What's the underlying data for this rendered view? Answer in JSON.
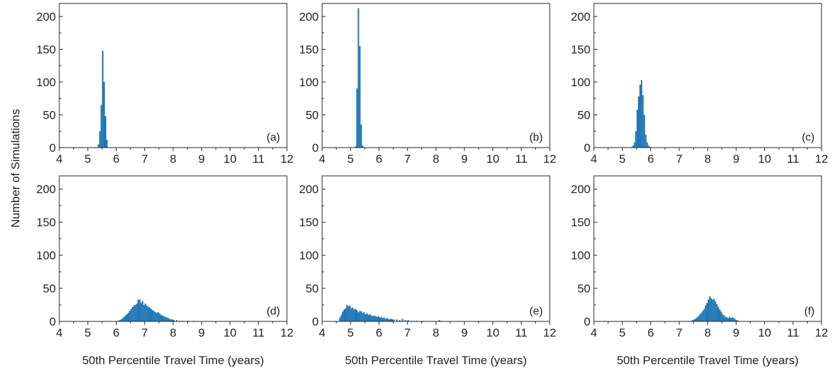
{
  "figure": {
    "shared_ylabel": "Number of Simulations",
    "xlabel": "50th Percentile Travel Time (years)",
    "bar_color": "#1f77b4"
  },
  "chart_data": [
    {
      "type": "bar",
      "panel_label": "(a)",
      "xlim": [
        4,
        12
      ],
      "ylim": [
        0,
        220
      ],
      "xticks": [
        4,
        5,
        6,
        7,
        8,
        9,
        10,
        11,
        12
      ],
      "yticks": [
        0,
        50,
        100,
        150,
        200
      ],
      "xlabel": "",
      "ylabel": "",
      "bin_width": 0.05,
      "bins": [
        [
          5.35,
          5
        ],
        [
          5.4,
          25
        ],
        [
          5.45,
          65
        ],
        [
          5.5,
          148
        ],
        [
          5.55,
          100
        ],
        [
          5.6,
          48
        ],
        [
          5.65,
          12
        ]
      ]
    },
    {
      "type": "bar",
      "panel_label": "(b)",
      "xlim": [
        4,
        12
      ],
      "ylim": [
        0,
        220
      ],
      "xticks": [
        4,
        5,
        6,
        7,
        8,
        9,
        10,
        11,
        12
      ],
      "yticks": [
        0,
        50,
        100,
        150,
        200
      ],
      "xlabel": "",
      "ylabel": "",
      "bin_width": 0.05,
      "bins": [
        [
          5.15,
          2
        ],
        [
          5.2,
          90
        ],
        [
          5.25,
          213
        ],
        [
          5.3,
          155
        ],
        [
          5.35,
          35
        ],
        [
          5.4,
          3
        ]
      ]
    },
    {
      "type": "bar",
      "panel_label": "(c)",
      "xlim": [
        4,
        12
      ],
      "ylim": [
        0,
        220
      ],
      "xticks": [
        4,
        5,
        6,
        7,
        8,
        9,
        10,
        11,
        12
      ],
      "yticks": [
        0,
        50,
        100,
        150,
        200
      ],
      "xlabel": "",
      "ylabel": "",
      "bin_width": 0.05,
      "bins": [
        [
          5.3,
          1
        ],
        [
          5.35,
          3
        ],
        [
          5.4,
          8
        ],
        [
          5.45,
          25
        ],
        [
          5.5,
          58
        ],
        [
          5.55,
          78
        ],
        [
          5.6,
          96
        ],
        [
          5.65,
          103
        ],
        [
          5.7,
          80
        ],
        [
          5.75,
          50
        ],
        [
          5.8,
          20
        ],
        [
          5.85,
          8
        ],
        [
          5.9,
          3
        ],
        [
          5.95,
          1
        ]
      ]
    },
    {
      "type": "bar",
      "panel_label": "(d)",
      "xlim": [
        4,
        12
      ],
      "ylim": [
        0,
        220
      ],
      "xticks": [
        4,
        5,
        6,
        7,
        8,
        9,
        10,
        11,
        12
      ],
      "yticks": [
        0,
        50,
        100,
        150,
        200
      ],
      "xlabel": "50th Percentile Travel Time (years)",
      "ylabel": "",
      "bin_width": 0.05,
      "bins": [
        [
          6.05,
          1
        ],
        [
          6.1,
          2
        ],
        [
          6.15,
          3
        ],
        [
          6.2,
          5
        ],
        [
          6.25,
          7
        ],
        [
          6.3,
          9
        ],
        [
          6.35,
          11
        ],
        [
          6.4,
          13
        ],
        [
          6.45,
          16
        ],
        [
          6.5,
          19
        ],
        [
          6.55,
          22
        ],
        [
          6.6,
          24
        ],
        [
          6.65,
          25
        ],
        [
          6.7,
          27
        ],
        [
          6.75,
          33
        ],
        [
          6.8,
          33
        ],
        [
          6.85,
          28
        ],
        [
          6.9,
          31
        ],
        [
          6.95,
          25
        ],
        [
          7.0,
          27
        ],
        [
          7.05,
          24
        ],
        [
          7.1,
          22
        ],
        [
          7.15,
          21
        ],
        [
          7.2,
          19
        ],
        [
          7.25,
          17
        ],
        [
          7.3,
          16
        ],
        [
          7.35,
          14
        ],
        [
          7.4,
          13
        ],
        [
          7.45,
          14
        ],
        [
          7.5,
          12
        ],
        [
          7.55,
          10
        ],
        [
          7.6,
          9
        ],
        [
          7.65,
          8
        ],
        [
          7.7,
          7
        ],
        [
          7.75,
          6
        ],
        [
          7.8,
          5
        ],
        [
          7.85,
          4
        ],
        [
          7.9,
          3
        ],
        [
          7.95,
          3
        ],
        [
          8.0,
          2
        ],
        [
          8.1,
          2
        ],
        [
          8.2,
          1
        ],
        [
          8.3,
          1
        ],
        [
          8.5,
          1
        ],
        [
          8.7,
          1
        ]
      ]
    },
    {
      "type": "bar",
      "panel_label": "(e)",
      "xlim": [
        4,
        12
      ],
      "ylim": [
        0,
        220
      ],
      "xticks": [
        4,
        5,
        6,
        7,
        8,
        9,
        10,
        11,
        12
      ],
      "yticks": [
        0,
        50,
        100,
        150,
        200
      ],
      "xlabel": "50th Percentile Travel Time (years)",
      "ylabel": "",
      "bin_width": 0.05,
      "bins": [
        [
          4.6,
          6
        ],
        [
          4.65,
          10
        ],
        [
          4.7,
          15
        ],
        [
          4.75,
          18
        ],
        [
          4.8,
          20
        ],
        [
          4.85,
          25
        ],
        [
          4.9,
          23
        ],
        [
          4.95,
          24
        ],
        [
          5.0,
          20
        ],
        [
          5.05,
          21
        ],
        [
          5.1,
          18
        ],
        [
          5.15,
          19
        ],
        [
          5.2,
          17
        ],
        [
          5.25,
          14
        ],
        [
          5.3,
          16
        ],
        [
          5.35,
          15
        ],
        [
          5.4,
          13
        ],
        [
          5.45,
          14
        ],
        [
          5.5,
          11
        ],
        [
          5.55,
          12
        ],
        [
          5.6,
          10
        ],
        [
          5.65,
          11
        ],
        [
          5.7,
          9
        ],
        [
          5.75,
          8
        ],
        [
          5.8,
          9
        ],
        [
          5.85,
          8
        ],
        [
          5.9,
          7
        ],
        [
          5.95,
          8
        ],
        [
          6.0,
          6
        ],
        [
          6.05,
          7
        ],
        [
          6.1,
          5
        ],
        [
          6.15,
          6
        ],
        [
          6.2,
          4
        ],
        [
          6.25,
          5
        ],
        [
          6.3,
          4
        ],
        [
          6.35,
          3
        ],
        [
          6.4,
          4
        ],
        [
          6.45,
          3
        ],
        [
          6.5,
          3
        ],
        [
          6.6,
          3
        ],
        [
          6.7,
          2
        ],
        [
          6.8,
          4
        ],
        [
          6.9,
          2
        ],
        [
          7.0,
          2
        ],
        [
          7.1,
          1
        ],
        [
          7.2,
          1
        ],
        [
          7.3,
          1
        ],
        [
          7.5,
          1
        ],
        [
          8.1,
          2
        ]
      ]
    },
    {
      "type": "bar",
      "panel_label": "(f)",
      "xlim": [
        4,
        12
      ],
      "ylim": [
        0,
        220
      ],
      "xticks": [
        4,
        5,
        6,
        7,
        8,
        9,
        10,
        11,
        12
      ],
      "yticks": [
        0,
        50,
        100,
        150,
        200
      ],
      "xlabel": "50th Percentile Travel Time (years)",
      "ylabel": "",
      "bin_width": 0.05,
      "bins": [
        [
          7.4,
          1
        ],
        [
          7.45,
          2
        ],
        [
          7.5,
          3
        ],
        [
          7.55,
          4
        ],
        [
          7.6,
          6
        ],
        [
          7.65,
          8
        ],
        [
          7.7,
          11
        ],
        [
          7.75,
          13
        ],
        [
          7.8,
          16
        ],
        [
          7.85,
          19
        ],
        [
          7.9,
          24
        ],
        [
          7.95,
          28
        ],
        [
          8.0,
          33
        ],
        [
          8.05,
          38
        ],
        [
          8.1,
          35
        ],
        [
          8.15,
          33
        ],
        [
          8.2,
          34
        ],
        [
          8.25,
          30
        ],
        [
          8.3,
          26
        ],
        [
          8.35,
          22
        ],
        [
          8.4,
          18
        ],
        [
          8.45,
          15
        ],
        [
          8.5,
          11
        ],
        [
          8.55,
          9
        ],
        [
          8.6,
          7
        ],
        [
          8.65,
          6
        ],
        [
          8.7,
          5
        ],
        [
          8.75,
          7
        ],
        [
          8.8,
          5
        ],
        [
          8.85,
          6
        ],
        [
          8.9,
          5
        ],
        [
          8.95,
          3
        ],
        [
          9.0,
          2
        ],
        [
          9.05,
          1
        ]
      ]
    }
  ]
}
